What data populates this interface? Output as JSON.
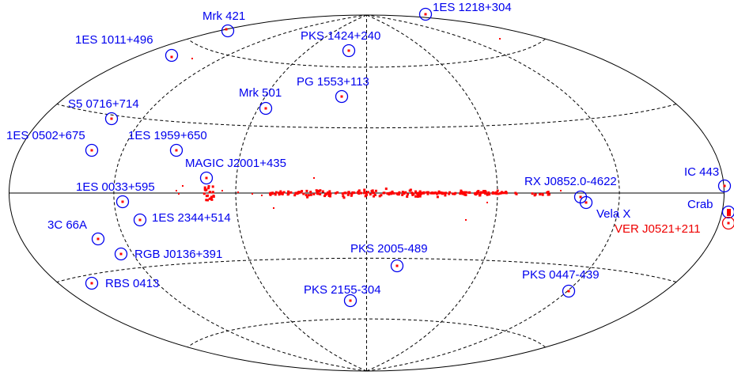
{
  "colors": {
    "background": "#ffffff",
    "grid": "#000000",
    "source_label": "#0000ee",
    "special_label": "#ee0000",
    "galactic_plane": "#ff0000",
    "marker": "#0000ee"
  },
  "sources": [
    {
      "name": "Mrk 421"
    },
    {
      "name": "1ES 1218+304"
    },
    {
      "name": "1ES 1011+496"
    },
    {
      "name": "PKS 1424+240"
    },
    {
      "name": "S5 0716+714"
    },
    {
      "name": "Mrk 501"
    },
    {
      "name": "PG 1553+113"
    },
    {
      "name": "1ES 0502+675"
    },
    {
      "name": "1ES 1959+650"
    },
    {
      "name": "MAGIC J2001+435"
    },
    {
      "name": "1ES 0033+595"
    },
    {
      "name": "1ES 2344+514"
    },
    {
      "name": "3C 66A"
    },
    {
      "name": "RGB J0136+391"
    },
    {
      "name": "RBS 0413"
    },
    {
      "name": "PKS 2005-489"
    },
    {
      "name": "PKS 2155-304"
    },
    {
      "name": "RX J0852.0-4622"
    },
    {
      "name": "Vela X"
    },
    {
      "name": "PKS 0447-439"
    },
    {
      "name": "IC 443"
    },
    {
      "name": "Crab"
    },
    {
      "name": "VER J0521+211"
    }
  ]
}
